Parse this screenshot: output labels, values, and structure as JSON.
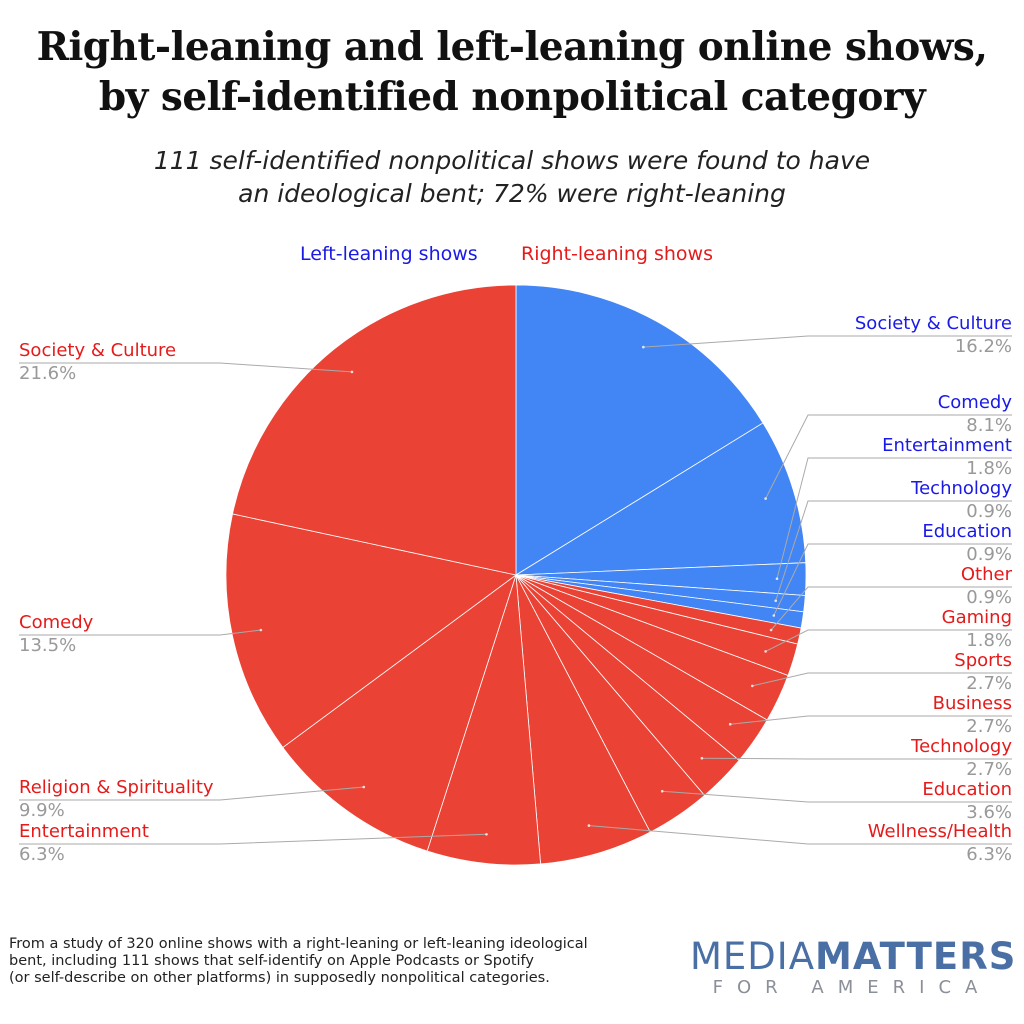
{
  "title_line1": "Right-leaning and left-leaning online shows,",
  "title_line2": "by self-identified nonpolitical category",
  "subtitle_line1": "111 self-identified nonpolitical shows were found to have",
  "subtitle_line2": "an ideological bent; 72% were right-leaning",
  "colors": {
    "left": "#4285f4",
    "right": "#ea4335",
    "label_left": "#1a1ae6",
    "label_right": "#e51a1a",
    "percent": "#999999",
    "leader": "#aaaaaa"
  },
  "footnote_lines": [
    "From a study of 320 online shows with a right-leaning or left-leaning ideological",
    "bent, including 111 shows that self-identify on Apple Podcasts or Spotify",
    "(or self-describe on other platforms) in supposedly nonpolitical categories."
  ],
  "logo": {
    "media": "MEDIA",
    "matters": "MATTERS",
    "sub": "FOR AMERICA"
  },
  "chart_data": {
    "type": "pie",
    "legend": [
      "Left-leaning shows",
      "Right-leaning shows"
    ],
    "legend_position": "top",
    "slices": [
      {
        "group": "Left-leaning shows",
        "label": "Society & Culture",
        "percent_label": "16.2%",
        "value": 16.2
      },
      {
        "group": "Left-leaning shows",
        "label": "Comedy",
        "percent_label": "8.1%",
        "value": 8.1
      },
      {
        "group": "Left-leaning shows",
        "label": "Entertainment",
        "percent_label": "1.8%",
        "value": 1.8
      },
      {
        "group": "Left-leaning shows",
        "label": "Technology",
        "percent_label": "0.9%",
        "value": 0.9
      },
      {
        "group": "Left-leaning shows",
        "label": "Education",
        "percent_label": "0.9%",
        "value": 0.9
      },
      {
        "group": "Right-leaning shows",
        "label": "Other",
        "percent_label": "0.9%",
        "value": 0.9
      },
      {
        "group": "Right-leaning shows",
        "label": "Gaming",
        "percent_label": "1.8%",
        "value": 1.8
      },
      {
        "group": "Right-leaning shows",
        "label": "Sports",
        "percent_label": "2.7%",
        "value": 2.7
      },
      {
        "group": "Right-leaning shows",
        "label": "Business",
        "percent_label": "2.7%",
        "value": 2.7
      },
      {
        "group": "Right-leaning shows",
        "label": "Technology",
        "percent_label": "2.7%",
        "value": 2.7
      },
      {
        "group": "Right-leaning shows",
        "label": "Education",
        "percent_label": "3.6%",
        "value": 3.6
      },
      {
        "group": "Right-leaning shows",
        "label": "Wellness/Health",
        "percent_label": "6.3%",
        "value": 6.3
      },
      {
        "group": "Right-leaning shows",
        "label": "Entertainment",
        "percent_label": "6.3%",
        "value": 6.3
      },
      {
        "group": "Right-leaning shows",
        "label": "Religion & Spirituality",
        "percent_label": "9.9%",
        "value": 9.9
      },
      {
        "group": "Right-leaning shows",
        "label": "Comedy",
        "percent_label": "13.5%",
        "value": 13.5
      },
      {
        "group": "Right-leaning shows",
        "label": "Society & Culture",
        "percent_label": "21.6%",
        "value": 21.6
      }
    ]
  }
}
